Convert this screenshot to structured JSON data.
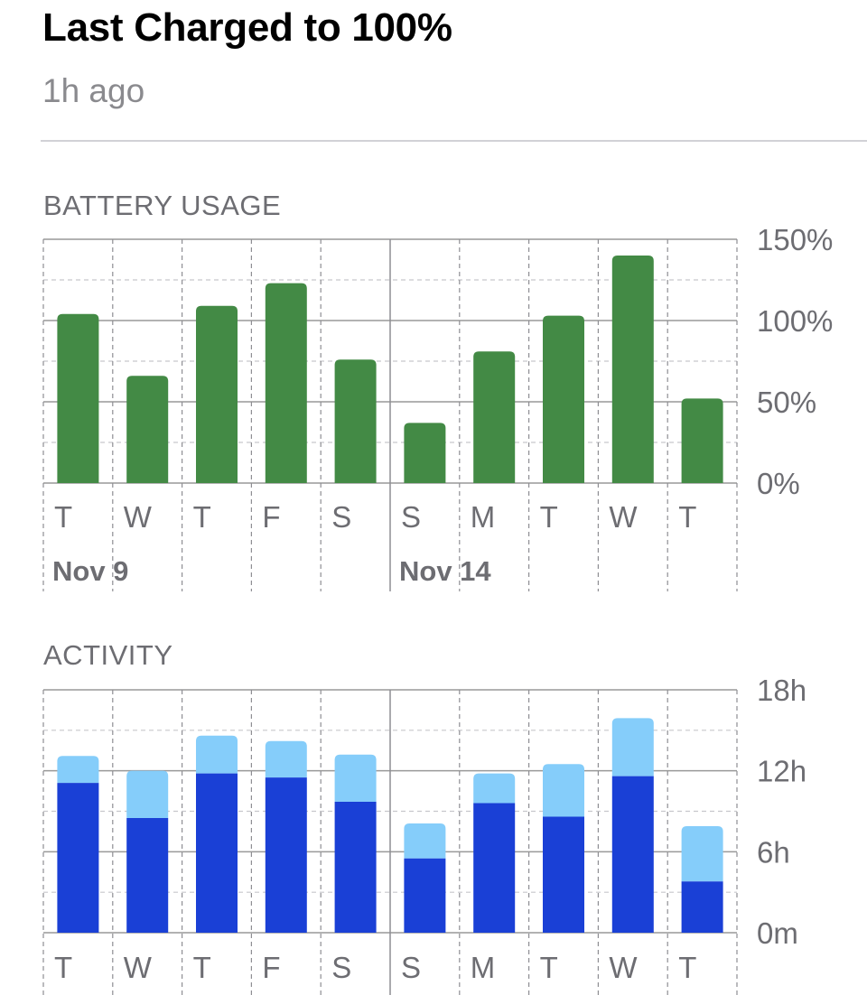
{
  "header": {
    "title": "Last Charged to 100%",
    "subtitle": "1h ago"
  },
  "battery_section": {
    "label": "BATTERY USAGE"
  },
  "activity_section": {
    "label": "ACTIVITY"
  },
  "colors": {
    "battery": "#438a45",
    "screen_on": "#1a40d6",
    "screen_off": "#85cdfa",
    "grid": "#999999",
    "axis_text": "#6d6d72"
  },
  "chart_data": [
    {
      "type": "bar",
      "title": "BATTERY USAGE",
      "categories": [
        "T",
        "W",
        "T",
        "F",
        "S",
        "S",
        "M",
        "T",
        "W",
        "T"
      ],
      "date_labels": [
        {
          "index": 0,
          "label": "Nov 9"
        },
        {
          "index": 5,
          "label": "Nov 14"
        }
      ],
      "values": [
        104,
        66,
        109,
        123,
        76,
        37,
        81,
        103,
        140,
        52
      ],
      "ylim": [
        0,
        150
      ],
      "yticks": [
        0,
        50,
        100,
        150
      ],
      "ytick_labels": [
        "0%",
        "50%",
        "100%",
        "150%"
      ],
      "grid": true
    },
    {
      "type": "bar",
      "title": "ACTIVITY",
      "categories": [
        "T",
        "W",
        "T",
        "F",
        "S",
        "S",
        "M",
        "T",
        "W",
        "T"
      ],
      "series": [
        {
          "values": [
            11.1,
            8.5,
            11.8,
            11.5,
            9.7,
            5.5,
            9.6,
            8.6,
            11.6,
            3.8
          ]
        },
        {
          "values": [
            2.0,
            3.5,
            2.8,
            2.7,
            3.5,
            2.6,
            2.2,
            3.9,
            4.3,
            4.1
          ]
        }
      ],
      "stacked": true,
      "ylim": [
        0,
        18
      ],
      "yticks": [
        0,
        6,
        12,
        18
      ],
      "ytick_labels": [
        "0m",
        "6h",
        "12h",
        "18h"
      ],
      "grid": true
    }
  ]
}
